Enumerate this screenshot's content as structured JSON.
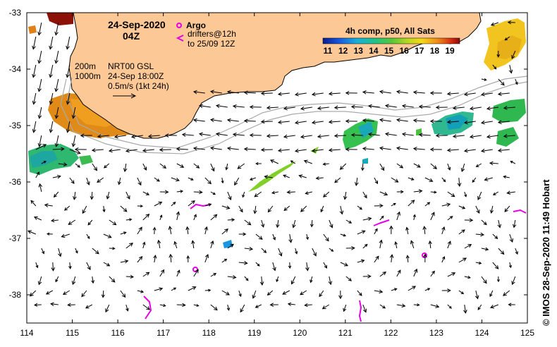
{
  "header": {
    "date": "24-Sep-2020",
    "time": "04Z"
  },
  "legend": {
    "argo_label": "Argo",
    "drifter_line1": "drifters@12h",
    "drifter_line2": "to 25/09 12Z"
  },
  "colorbar": {
    "title": "4h comp, p50, All Sats",
    "ticks": [
      "11",
      "12",
      "13",
      "14",
      "15",
      "16",
      "17",
      "18",
      "19"
    ]
  },
  "contour_info": {
    "depth1": "200m",
    "depth2": "1000m"
  },
  "current_info": {
    "line1": "NRT00 GSL",
    "line2": "24-Sep 18:00Z",
    "line3": "0.5m/s (1kt 24h)"
  },
  "axes": {
    "x_ticks": [
      "114",
      "115",
      "116",
      "117",
      "118",
      "119",
      "120",
      "121",
      "122",
      "123",
      "124",
      "125"
    ],
    "y_ticks": [
      "-33",
      "-34",
      "-35",
      "-36",
      "-37",
      "-38"
    ]
  },
  "credit": "© IMOS 28-Sep-2020 11:49 Hobart",
  "colors": {
    "land": "#fcc896",
    "argo": "#e600e6",
    "drifter": "#e600e6"
  }
}
